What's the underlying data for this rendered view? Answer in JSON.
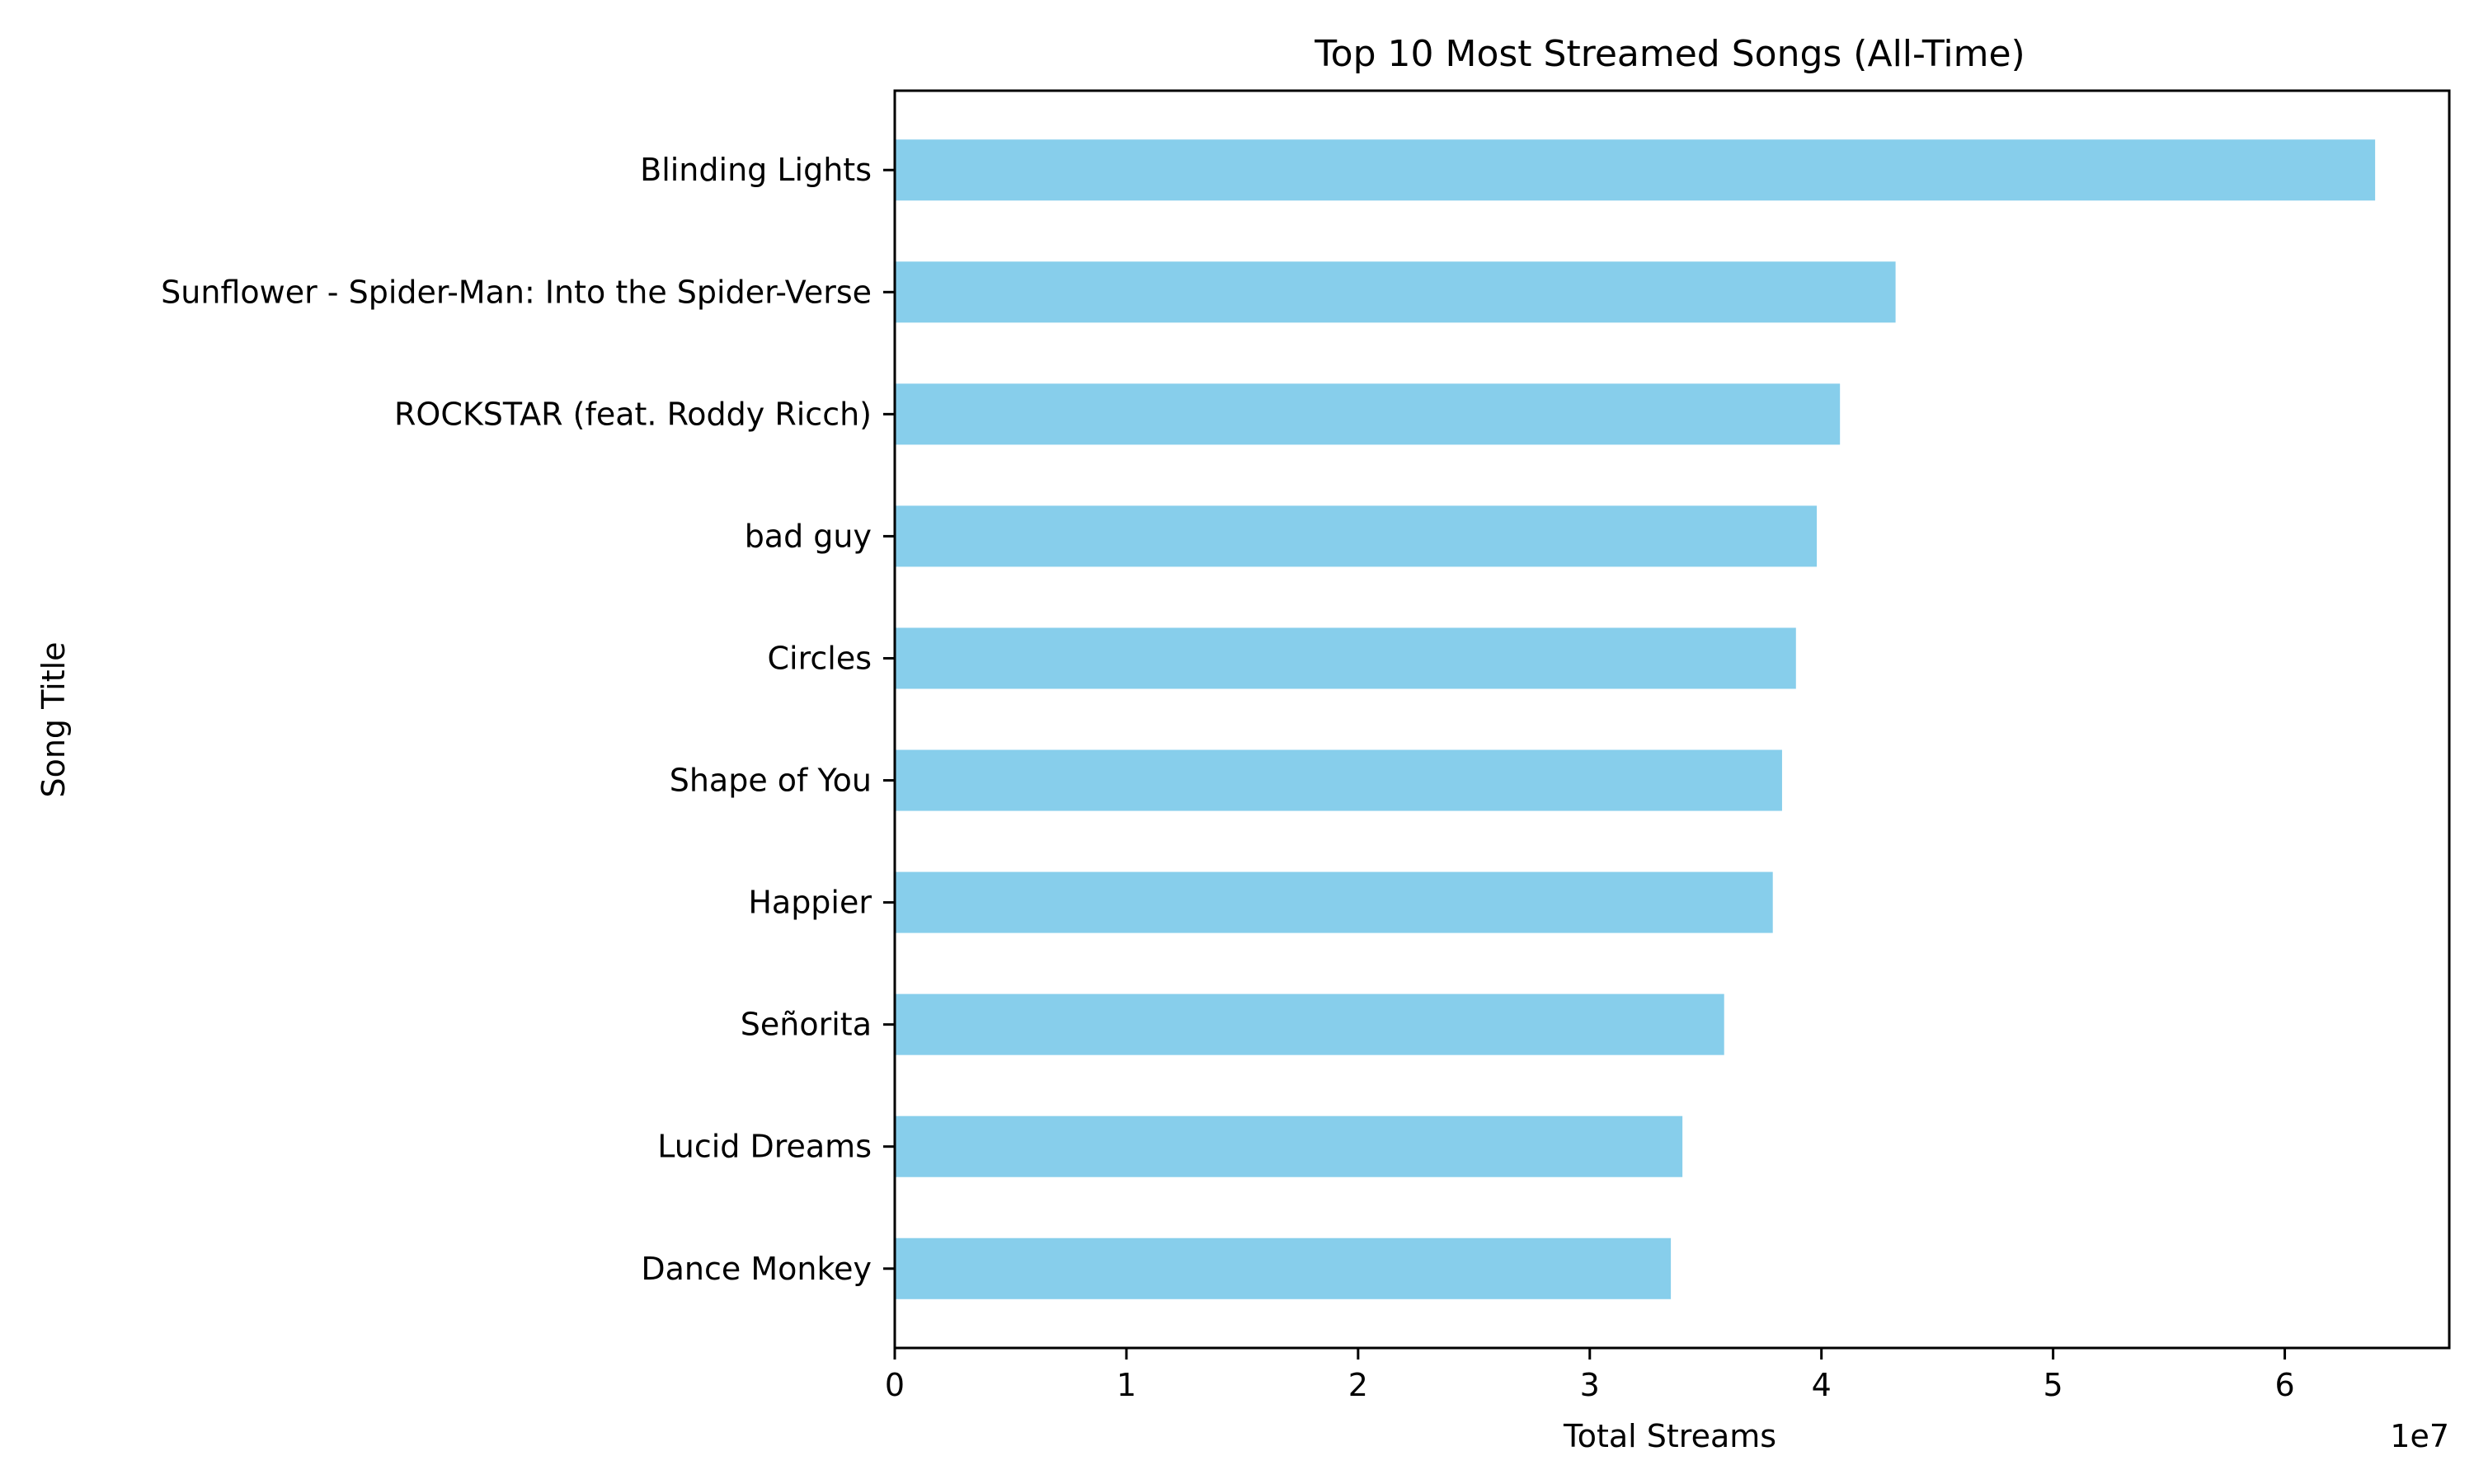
{
  "chart_data": {
    "type": "bar",
    "orientation": "horizontal",
    "title": "Top 10 Most Streamed Songs (All-Time)",
    "xlabel": "Total Streams",
    "ylabel": "Song Title",
    "x_offset_text": "1e7",
    "x_tick_labels": [
      "0",
      "1",
      "2",
      "3",
      "4",
      "5",
      "6"
    ],
    "x_ticks": [
      0,
      10000000,
      20000000,
      30000000,
      40000000,
      50000000,
      60000000
    ],
    "xlim": [
      0,
      67100000
    ],
    "grid": false,
    "bar_color": "#87CEEB",
    "categories": [
      "Blinding Lights",
      "Sunflower - Spider-Man: Into the Spider-Verse",
      "ROCKSTAR (feat. Roddy Ricch)",
      "bad guy",
      "Circles",
      "Shape of You",
      "Happier",
      "Señorita",
      "Lucid Dreams",
      "Dance Monkey"
    ],
    "values": [
      63900000,
      43200000,
      40800000,
      39800000,
      38900000,
      38300000,
      37900000,
      35800000,
      34000000,
      33500000
    ]
  }
}
